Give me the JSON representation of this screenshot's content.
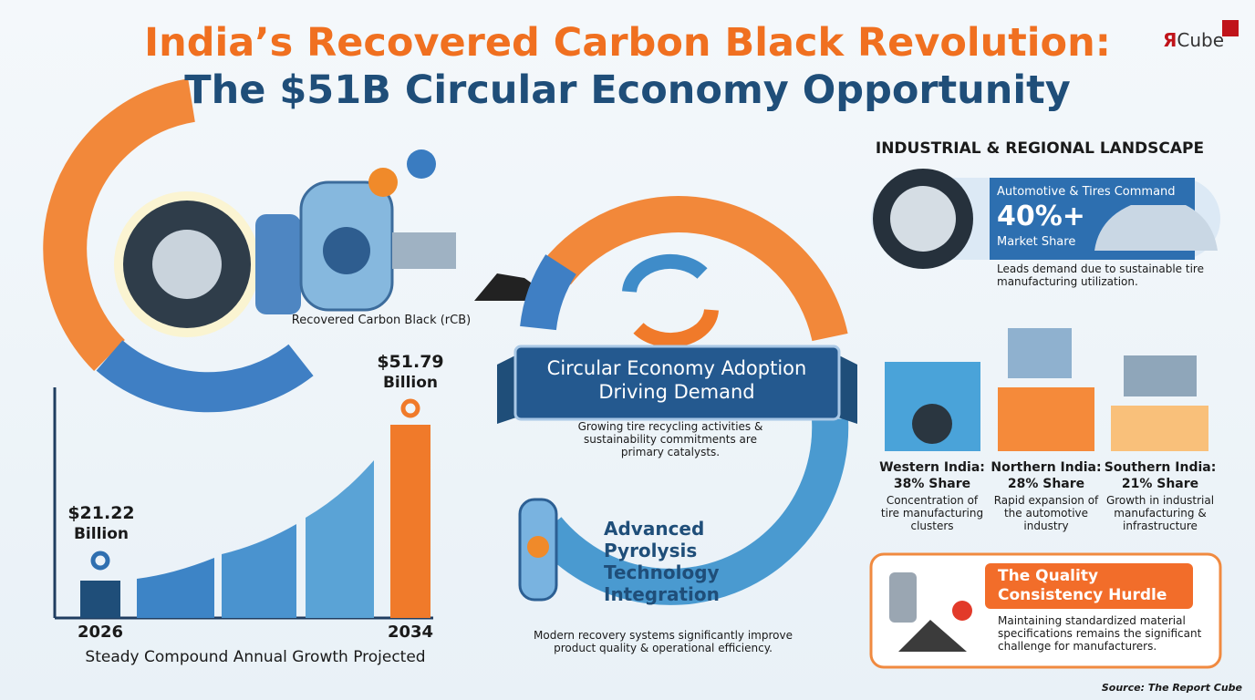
{
  "header": {
    "title_line1": "India’s Recovered Carbon Black Revolution:",
    "title_line2": "The $51B Circular Economy Opportunity",
    "logo_mark": "Я",
    "logo_text": "Cube"
  },
  "process": {
    "label": "Recovered Carbon Black (rCB)"
  },
  "growth": {
    "start": {
      "value": "$21.22",
      "unit": "Billion",
      "year": "2026"
    },
    "end": {
      "value": "$51.79",
      "unit": "Billion",
      "year": "2034"
    },
    "caption": "Steady Compound Annual Growth Projected"
  },
  "center": {
    "banner_line1": "Circular Economy Adoption",
    "banner_line2": "Driving Demand",
    "banner_text": "Growing tire recycling activities & sustainability commitments are primary catalysts.",
    "tech_title": "Advanced Pyrolysis Technology Integration",
    "tech_text": "Modern recovery systems significantly improve product quality & operational efficiency."
  },
  "landscape": {
    "heading": "INDUSTRIAL & REGIONAL LANDSCAPE",
    "automotive": {
      "title": "Automotive & Tires Command",
      "value": "40%+",
      "label": "Market Share",
      "text": "Leads demand due to sustainable tire manufacturing utilization."
    },
    "regions": [
      {
        "name": "Western India:",
        "share": "38% Share",
        "text": "Concentration of tire manufacturing clusters"
      },
      {
        "name": "Northern India:",
        "share": "28% Share",
        "text": "Rapid expansion of the automotive industry"
      },
      {
        "name": "Southern India:",
        "share": "21% Share",
        "text": "Growth in industrial manufacturing & infrastructure"
      }
    ],
    "hurdle": {
      "title": "The Quality Consistency Hurdle",
      "text": "Maintaining standardized material specifications remains the significant challenge for manufacturers."
    }
  },
  "footer": {
    "source": "Source: The Report Cube"
  }
}
